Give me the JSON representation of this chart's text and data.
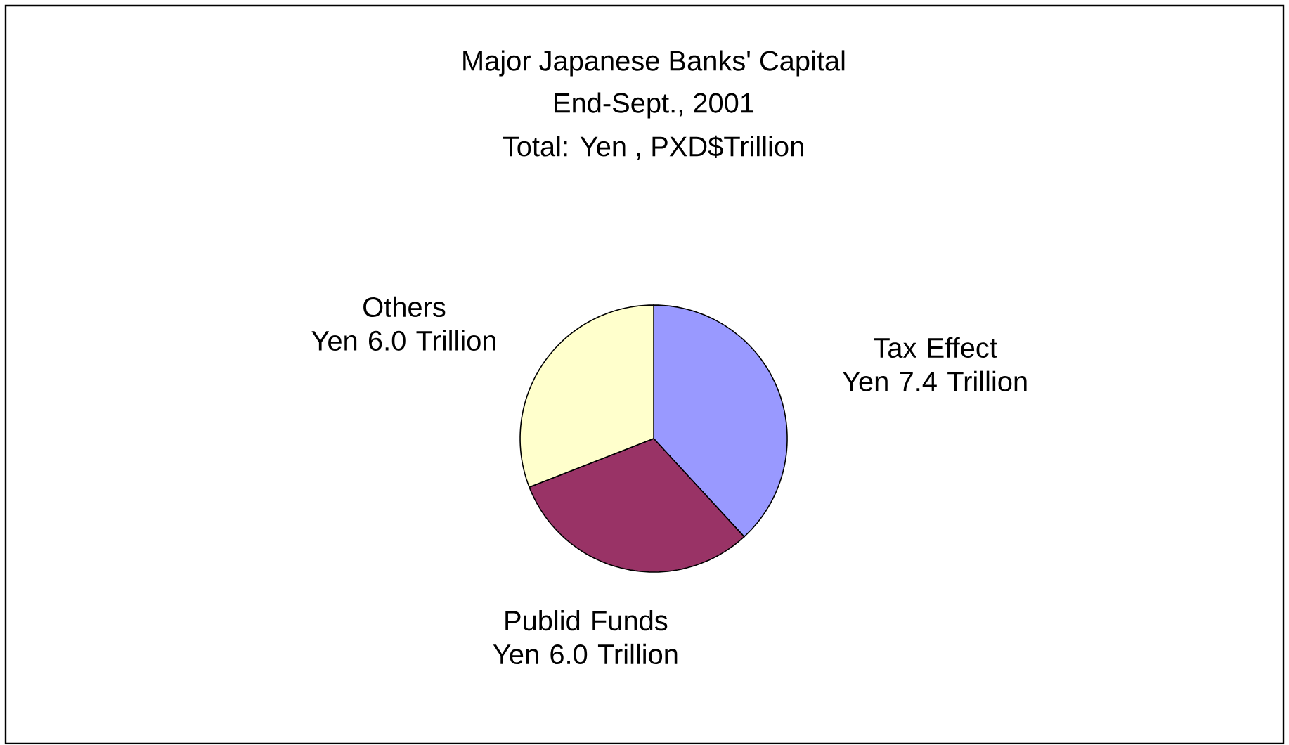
{
  "chart_data": {
    "type": "pie",
    "title": "Major Japanese Banks' Capital",
    "subtitle": "End-Sept., 2001",
    "annotations": [
      "Total: Yen , PXD$Trillion"
    ],
    "categories": [
      "Tax Effect",
      "Publid Funds",
      "Others"
    ],
    "values": [
      7.4,
      6.0,
      6.0
    ],
    "value_labels": [
      "Yen 7.4 Trillion",
      "Yen 6.0 Trillion",
      "Yen 6.0 Trillion"
    ],
    "colors": [
      "#9999ff",
      "#993366",
      "#ffffcc"
    ]
  }
}
